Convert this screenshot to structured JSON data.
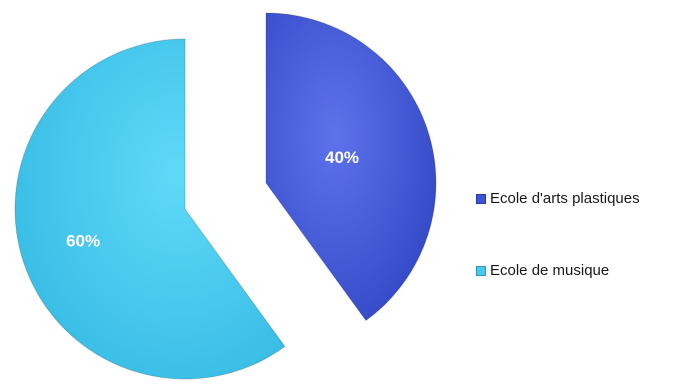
{
  "chart_data": {
    "type": "pie",
    "title": "",
    "categories": [
      "Ecole d'arts plastiques",
      "Ecole de musique"
    ],
    "values": [
      40,
      60
    ],
    "data_labels": [
      "40%",
      "60%"
    ],
    "colors": [
      "#3a52d6",
      "#45c9ee"
    ],
    "exploded": true,
    "legend": "right",
    "start": "top",
    "direction": "clockwise"
  },
  "legend": {
    "items": [
      {
        "label": "Ecole d'arts plastiques",
        "color": "#3a52d6"
      },
      {
        "label": "Ecole de musique",
        "color": "#45c9ee"
      }
    ]
  }
}
